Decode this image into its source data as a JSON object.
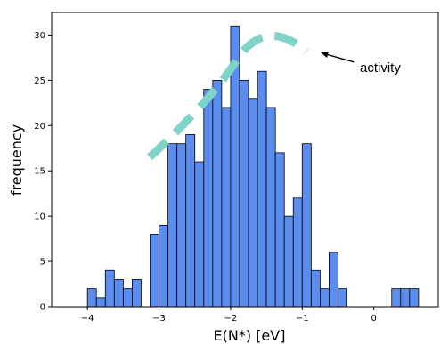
{
  "chart_data": {
    "type": "bar",
    "subtype": "histogram",
    "xlabel": "E(N*) [eV]",
    "ylabel": "frequency",
    "xlim": [
      -4.5,
      0.9
    ],
    "ylim": [
      0,
      32.5
    ],
    "xticks": [
      -4,
      -3,
      -2,
      -1,
      0
    ],
    "xtick_labels": [
      "−4",
      "−3",
      "−2",
      "−1",
      "0"
    ],
    "yticks": [
      0,
      5,
      10,
      15,
      20,
      25,
      30
    ],
    "bin_width": 0.125,
    "bins_start": [
      -4.0,
      -3.875,
      -3.75,
      -3.625,
      -3.5,
      -3.375,
      -3.25,
      -3.125,
      -3.0,
      -2.875,
      -2.75,
      -2.625,
      -2.5,
      -2.375,
      -2.25,
      -2.125,
      -2.0,
      -1.875,
      -1.75,
      -1.625,
      -1.5,
      -1.375,
      -1.25,
      -1.125,
      -1.0,
      -0.875,
      -0.75,
      -0.625,
      -0.5,
      -0.375,
      -0.25,
      -0.125,
      0.0,
      0.125,
      0.25,
      0.375,
      0.5,
      0.625,
      0.75
    ],
    "counts": [
      2,
      1,
      4,
      3,
      2,
      3,
      0,
      8,
      9,
      18,
      18,
      19,
      16,
      24,
      25,
      22,
      31,
      25,
      23,
      26,
      22,
      17,
      10,
      12,
      18,
      4,
      2,
      6,
      2,
      0,
      0,
      0,
      0,
      0,
      2,
      2,
      2,
      0,
      0
    ],
    "bar_color": "#5b8def",
    "edge_color": "#000000",
    "grid": false,
    "annotation": {
      "text": "activity",
      "curve_color": "#7fd3c9"
    }
  }
}
